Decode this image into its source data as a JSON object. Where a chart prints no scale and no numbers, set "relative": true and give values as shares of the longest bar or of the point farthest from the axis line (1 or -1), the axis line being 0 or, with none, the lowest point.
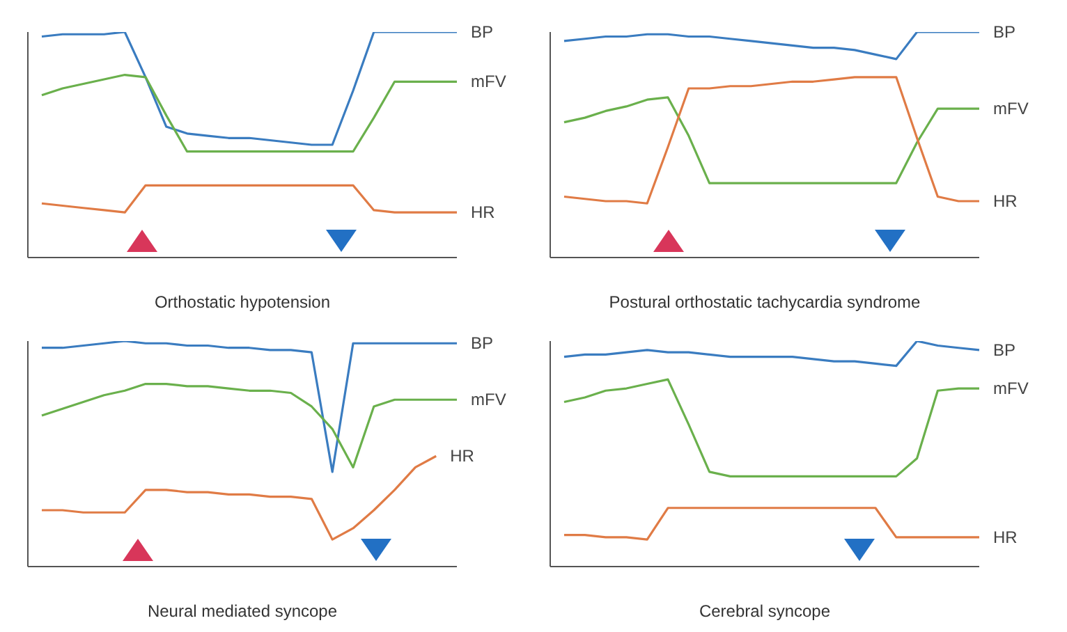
{
  "chart_data": [
    {
      "type": "line",
      "relative": true,
      "xlabel": "Orthostatic hypotension",
      "marker": "none",
      "categories": [
        null,
        null,
        null,
        null,
        null,
        null,
        null,
        null,
        null,
        null,
        null,
        null,
        null,
        null,
        null,
        null,
        null,
        null,
        null,
        null,
        null
      ],
      "series": [
        {
          "name": "BP",
          "color": "#3a7cc0",
          "values": [
            0.98,
            0.99,
            0.99,
            0.99,
            1,
            0.8,
            0.58,
            0.55,
            0.54,
            0.53,
            0.53,
            0.52,
            0.51,
            0.5,
            0.5,
            0.74,
            1,
            1,
            1,
            1,
            1
          ]
        },
        {
          "name": "mFV",
          "color": "#6ab04c",
          "values": [
            0.72,
            0.75,
            0.77,
            0.79,
            0.81,
            0.8,
            0.63,
            0.47,
            0.47,
            0.47,
            0.47,
            0.47,
            0.47,
            0.47,
            0.47,
            0.47,
            0.62,
            0.78,
            0.78,
            0.78,
            0.78
          ]
        },
        {
          "name": "HR",
          "color": "#e07b45",
          "values": [
            0.24,
            0.23,
            0.22,
            0.21,
            0.2,
            0.32,
            0.32,
            0.32,
            0.32,
            0.32,
            0.32,
            0.32,
            0.32,
            0.32,
            0.32,
            0.32,
            0.21,
            0.2,
            0.2,
            0.2,
            0.2
          ]
        }
      ]
    },
    {
      "type": "line",
      "relative": true,
      "xlabel": "Postural orthostatic tachycardia syndrome",
      "marker": "none",
      "categories": [
        null,
        null,
        null,
        null,
        null,
        null,
        null,
        null,
        null,
        null,
        null,
        null,
        null,
        null,
        null,
        null,
        null,
        null,
        null,
        null,
        null
      ],
      "series": [
        {
          "name": "BP",
          "color": "#3a7cc0",
          "values": [
            0.96,
            0.97,
            0.98,
            0.98,
            0.99,
            0.99,
            0.98,
            0.98,
            0.97,
            0.96,
            0.95,
            0.94,
            0.93,
            0.93,
            0.92,
            0.9,
            0.88,
            1,
            1,
            1,
            1
          ]
        },
        {
          "name": "mFV",
          "color": "#6ab04c",
          "values": [
            0.6,
            0.62,
            0.65,
            0.67,
            0.7,
            0.71,
            0.54,
            0.33,
            0.33,
            0.33,
            0.33,
            0.33,
            0.33,
            0.33,
            0.33,
            0.33,
            0.33,
            0.51,
            0.66,
            0.66,
            0.66
          ]
        },
        {
          "name": "HR",
          "color": "#e07b45",
          "values": [
            0.27,
            0.26,
            0.25,
            0.25,
            0.24,
            0.49,
            0.75,
            0.75,
            0.76,
            0.76,
            0.77,
            0.78,
            0.78,
            0.79,
            0.8,
            0.8,
            0.8,
            0.53,
            0.27,
            0.25,
            0.25
          ]
        }
      ]
    },
    {
      "type": "line",
      "relative": true,
      "xlabel": "Neural mediated syncope",
      "marker": "none",
      "categories": [
        null,
        null,
        null,
        null,
        null,
        null,
        null,
        null,
        null,
        null,
        null,
        null,
        null,
        null,
        null,
        null,
        null,
        null,
        null,
        null,
        null
      ],
      "series": [
        {
          "name": "BP",
          "color": "#3a7cc0",
          "values": [
            0.97,
            0.97,
            0.98,
            0.99,
            1,
            0.99,
            0.99,
            0.98,
            0.98,
            0.97,
            0.97,
            0.96,
            0.96,
            0.95,
            0.42,
            0.99,
            0.99,
            0.99,
            0.99,
            0.99,
            0.99
          ]
        },
        {
          "name": "mFV",
          "color": "#6ab04c",
          "values": [
            0.67,
            0.7,
            0.73,
            0.76,
            0.78,
            0.81,
            0.81,
            0.8,
            0.8,
            0.79,
            0.78,
            0.78,
            0.77,
            0.71,
            0.61,
            0.44,
            0.71,
            0.74,
            0.74,
            0.74,
            0.74
          ]
        },
        {
          "name": "HR",
          "color": "#e07b45",
          "values": [
            0.25,
            0.25,
            0.24,
            0.24,
            0.24,
            0.34,
            0.34,
            0.33,
            0.33,
            0.32,
            0.32,
            0.31,
            0.31,
            0.3,
            0.12,
            0.17,
            0.25,
            0.34,
            0.44,
            0.49,
            null
          ]
        }
      ]
    },
    {
      "type": "line",
      "relative": true,
      "xlabel": "Cerebral syncope",
      "marker": "none",
      "categories": [
        null,
        null,
        null,
        null,
        null,
        null,
        null,
        null,
        null,
        null,
        null,
        null,
        null,
        null,
        null,
        null,
        null,
        null,
        null,
        null,
        null
      ],
      "series": [
        {
          "name": "BP",
          "color": "#3a7cc0",
          "values": [
            0.93,
            0.94,
            0.94,
            0.95,
            0.96,
            0.95,
            0.95,
            0.94,
            0.93,
            0.93,
            0.93,
            0.93,
            0.92,
            0.91,
            0.91,
            0.9,
            0.89,
            1,
            0.98,
            0.97,
            0.96
          ]
        },
        {
          "name": "mFV",
          "color": "#6ab04c",
          "values": [
            0.73,
            0.75,
            0.78,
            0.79,
            0.81,
            0.83,
            0.63,
            0.42,
            0.4,
            0.4,
            0.4,
            0.4,
            0.4,
            0.4,
            0.4,
            0.4,
            0.4,
            0.48,
            0.78,
            0.79,
            0.79
          ]
        },
        {
          "name": "HR",
          "color": "#e07b45",
          "values": [
            0.14,
            0.14,
            0.13,
            0.13,
            0.12,
            0.26,
            0.26,
            0.26,
            0.26,
            0.26,
            0.26,
            0.26,
            0.26,
            0.26,
            0.26,
            0.26,
            0.13,
            0.13,
            0.13,
            0.13,
            0.13
          ]
        }
      ]
    }
  ]
}
